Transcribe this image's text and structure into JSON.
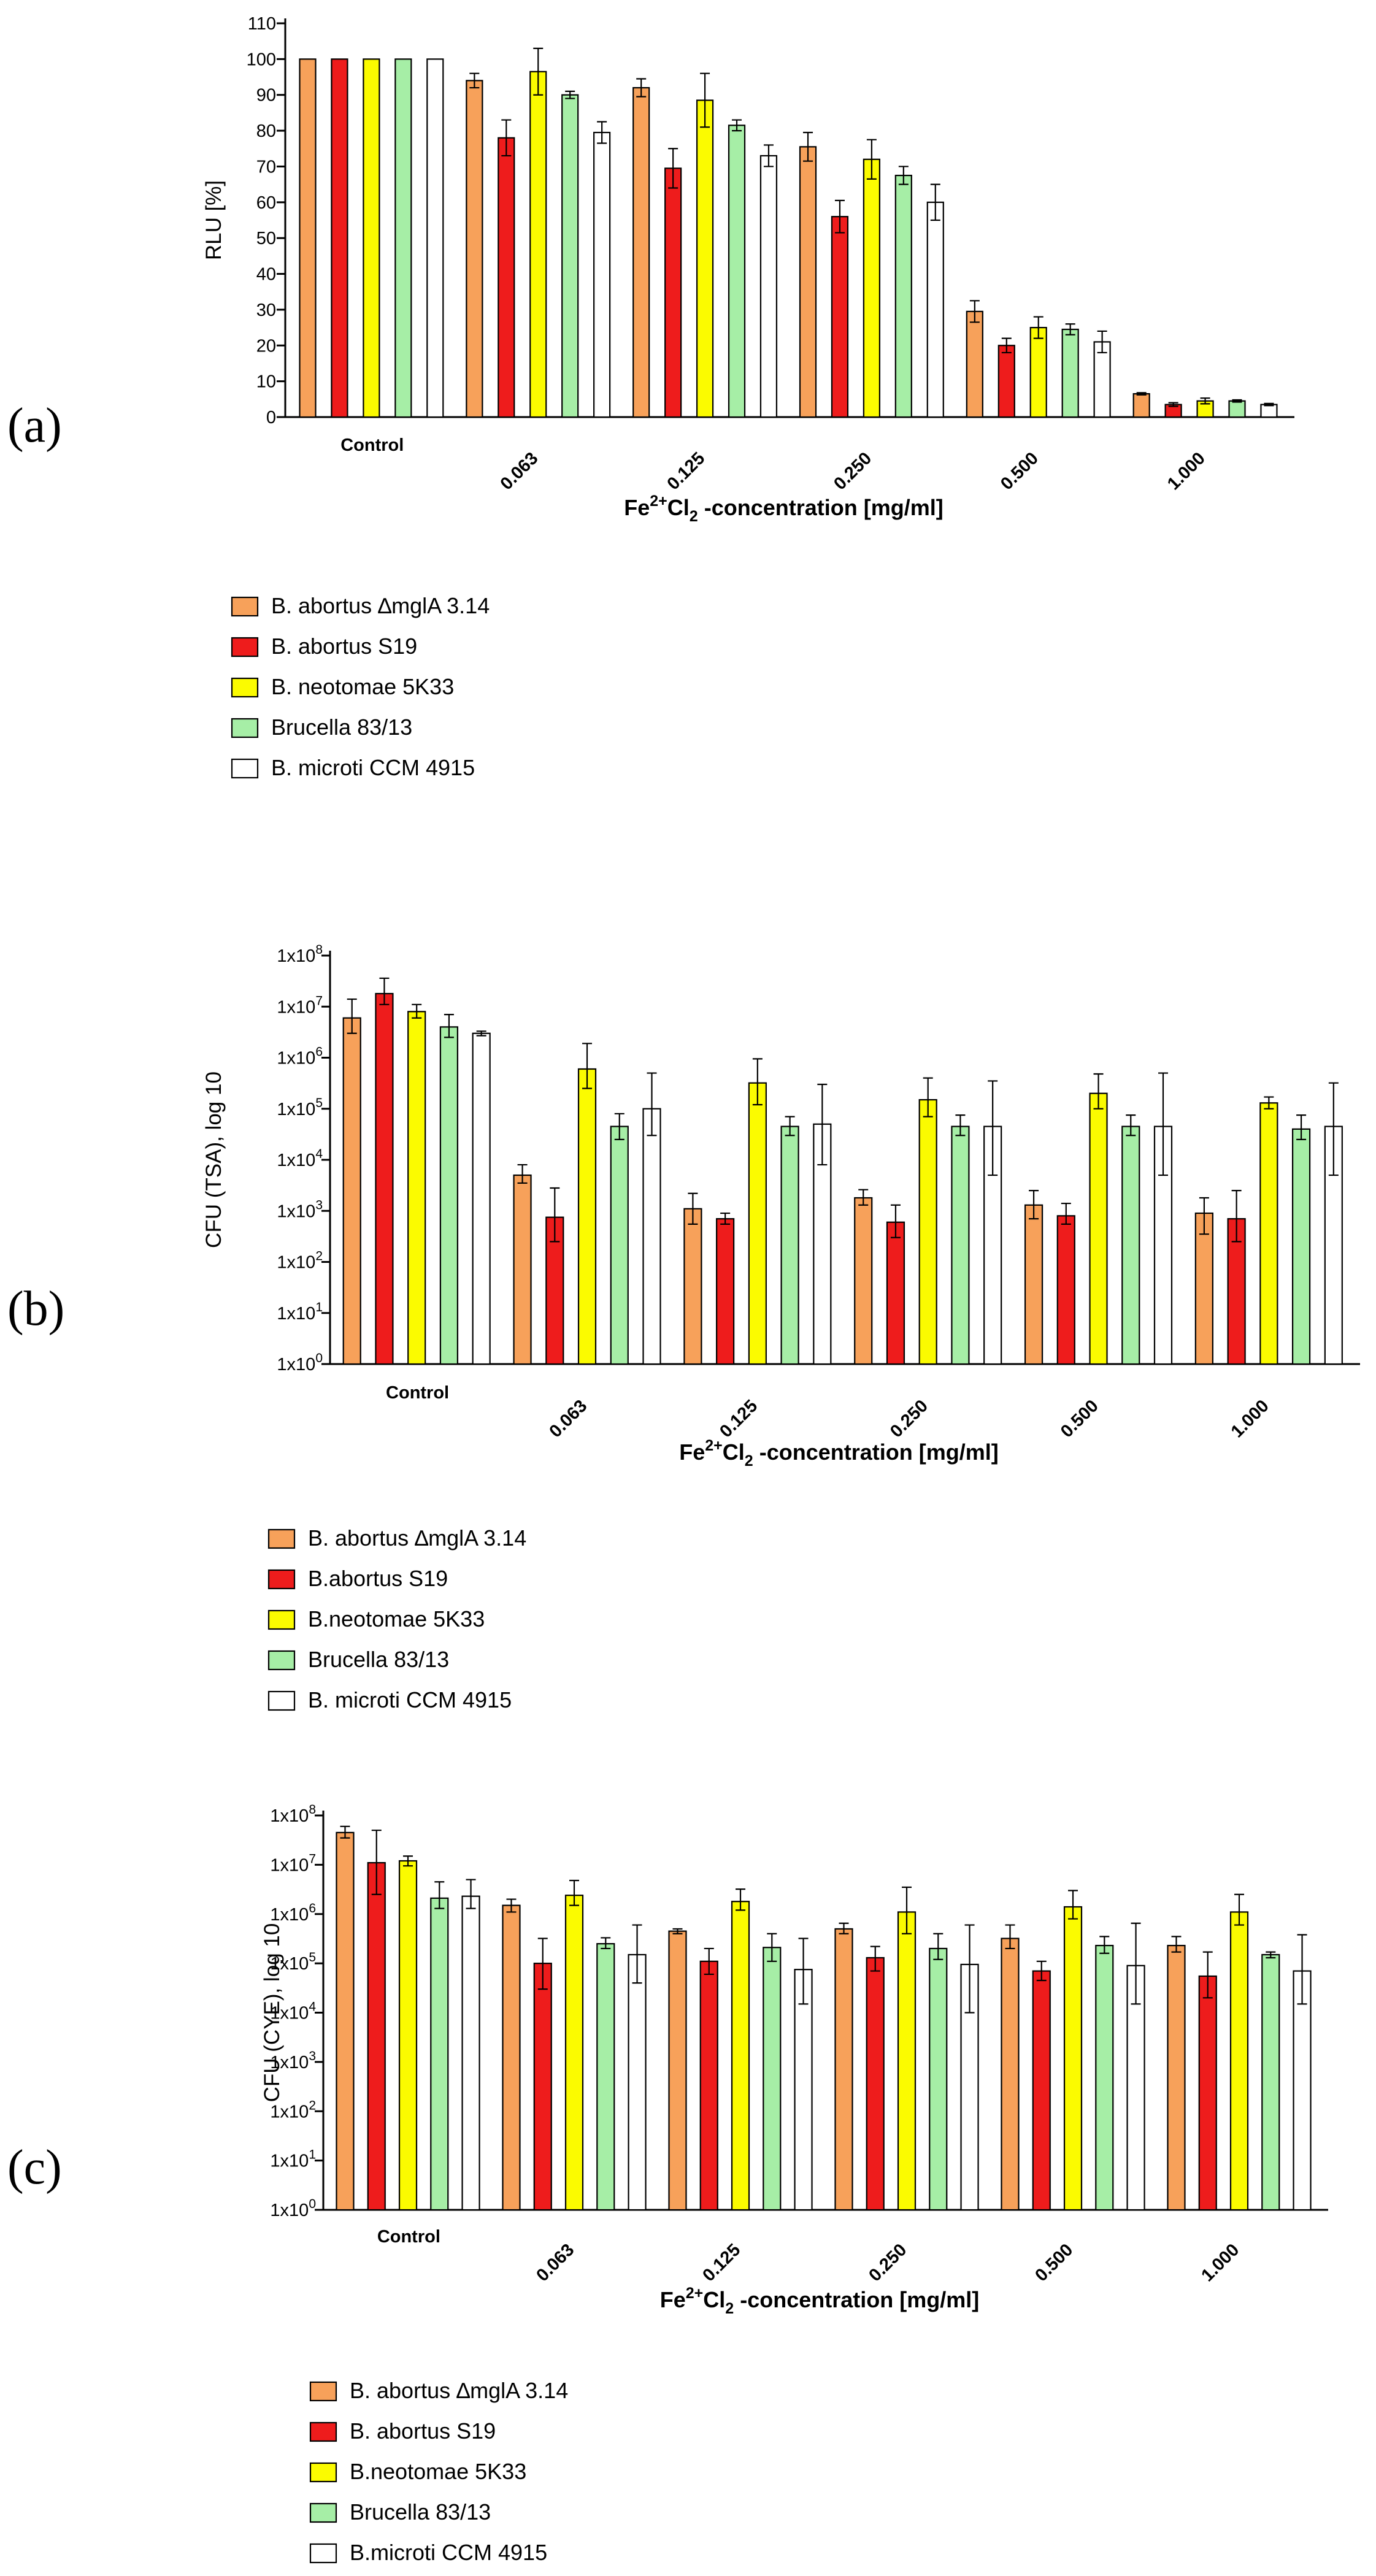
{
  "chart_data": [
    {
      "id": "a",
      "panel_label": "(a)",
      "type": "bar",
      "scale": "linear",
      "ylabel": "RLU [%]",
      "xlabel_parts": [
        "Fe",
        "2+",
        "Cl",
        "2",
        " -concentration [mg/ml]"
      ],
      "categories": [
        "Control",
        "0.063",
        "0.125",
        "0.250",
        "0.500",
        "1.000"
      ],
      "ylim": [
        0,
        110
      ],
      "yticks": [
        0,
        10,
        20,
        30,
        40,
        50,
        60,
        70,
        80,
        90,
        100,
        110
      ],
      "ytick_labels": [
        "0",
        "10",
        "20",
        "30",
        "40",
        "50",
        "60",
        "70",
        "80",
        "90",
        "100",
        "110"
      ],
      "grid": false,
      "legend_position": "below",
      "series": [
        {
          "name": "B. abortus ∆mglA 3.14",
          "color": "#f7a15a",
          "values": [
            100,
            94,
            92,
            75.5,
            29.5,
            6.5
          ],
          "errors": [
            0,
            2,
            2.5,
            4,
            3,
            0.3
          ]
        },
        {
          "name": "B. abortus S19",
          "color": "#ee1c1c",
          "values": [
            100,
            78,
            69.5,
            56,
            20,
            3.5
          ],
          "errors": [
            0,
            5,
            5.5,
            4.5,
            2,
            0.5
          ]
        },
        {
          "name": "B. neotomae 5K33",
          "color": "#fbfb00",
          "values": [
            100,
            96.5,
            88.5,
            72,
            25,
            4.5
          ],
          "errors": [
            0,
            6.5,
            7.5,
            5.5,
            3,
            0.8
          ]
        },
        {
          "name": "Brucella 83/13",
          "color": "#a6eea6",
          "values": [
            100,
            90,
            81.5,
            67.5,
            24.5,
            4.5
          ],
          "errors": [
            0,
            1,
            1.5,
            2.5,
            1.5,
            0.3
          ]
        },
        {
          "name": "B. microti CCM 4915",
          "color": "#ffffff",
          "values": [
            100,
            79.5,
            73,
            60,
            21,
            3.5
          ],
          "errors": [
            0,
            3,
            3,
            5,
            3,
            0.3
          ]
        }
      ]
    },
    {
      "id": "b",
      "panel_label": "(b)",
      "type": "bar",
      "scale": "log10",
      "ylabel": "CFU (TSA), log 10",
      "xlabel_parts": [
        "Fe",
        "2+",
        "Cl",
        "2",
        " -concentration [mg/ml]"
      ],
      "categories": [
        "Control",
        "0.063",
        "0.125",
        "0.250",
        "0.500",
        "1.000"
      ],
      "ylim": [
        1,
        100000000
      ],
      "yticks": [
        1,
        10,
        100,
        1000,
        10000,
        100000,
        1000000,
        10000000,
        100000000
      ],
      "ytick_labels": [
        [
          "1x10",
          "0"
        ],
        [
          "1x10",
          "1"
        ],
        [
          "1x10",
          "2"
        ],
        [
          "1x10",
          "3"
        ],
        [
          "1x10",
          "4"
        ],
        [
          "1x10",
          "5"
        ],
        [
          "1x10",
          "6"
        ],
        [
          "1x10",
          "7"
        ],
        [
          "1x10",
          "8"
        ]
      ],
      "grid": false,
      "legend_position": "below",
      "series": [
        {
          "name": "B. abortus ∆mglA 3.14",
          "color": "#f7a15a",
          "values": [
            6000000,
            5000,
            1100,
            1800,
            1300,
            900
          ],
          "err_low": [
            3000000,
            3500,
            550,
            1300,
            700,
            350
          ],
          "err_high": [
            14000000,
            8000,
            2200,
            2600,
            2500,
            1800
          ]
        },
        {
          "name": "B.abortus S19",
          "color": "#ee1c1c",
          "values": [
            18000000,
            750,
            700,
            600,
            800,
            700
          ],
          "err_low": [
            11000000,
            250,
            550,
            300,
            550,
            250
          ],
          "err_high": [
            36000000,
            2800,
            900,
            1300,
            1400,
            2500
          ]
        },
        {
          "name": "B.neotomae 5K33",
          "color": "#fbfb00",
          "values": [
            8000000,
            600000,
            320000,
            150000,
            200000,
            130000
          ],
          "err_low": [
            6000000,
            250000,
            120000,
            70000,
            100000,
            100000
          ],
          "err_high": [
            11000000,
            1900000,
            950000,
            400000,
            480000,
            170000
          ]
        },
        {
          "name": "Brucella 83/13",
          "color": "#a6eea6",
          "values": [
            4000000,
            45000,
            45000,
            45000,
            45000,
            40000
          ],
          "err_low": [
            2500000,
            25000,
            30000,
            30000,
            30000,
            25000
          ],
          "err_high": [
            7000000,
            80000,
            70000,
            75000,
            75000,
            75000
          ]
        },
        {
          "name": "B. microti CCM 4915",
          "color": "#ffffff",
          "values": [
            3000000,
            100000,
            50000,
            45000,
            45000,
            45000
          ],
          "err_low": [
            2700000,
            30000,
            8000,
            5000,
            5000,
            5000
          ],
          "err_high": [
            3300000,
            500000,
            300000,
            350000,
            500000,
            320000
          ]
        }
      ]
    },
    {
      "id": "c",
      "panel_label": "(c)",
      "type": "bar",
      "scale": "log10",
      "ylabel": "CFU (CYE), log 10",
      "xlabel_parts": [
        "Fe",
        "2+",
        "Cl",
        "2",
        " -concentration [mg/ml]"
      ],
      "categories": [
        "Control",
        "0.063",
        "0.125",
        "0.250",
        "0.500",
        "1.000"
      ],
      "ylim": [
        1,
        100000000
      ],
      "yticks": [
        1,
        10,
        100,
        1000,
        10000,
        100000,
        1000000,
        10000000,
        100000000
      ],
      "ytick_labels": [
        [
          "1x10",
          "0"
        ],
        [
          "1x10",
          "1"
        ],
        [
          "1x10",
          "2"
        ],
        [
          "1x10",
          "3"
        ],
        [
          "1x10",
          "4"
        ],
        [
          "1x10",
          "5"
        ],
        [
          "1x10",
          "6"
        ],
        [
          "1x10",
          "7"
        ],
        [
          "1x10",
          "8"
        ]
      ],
      "grid": false,
      "legend_position": "below",
      "series": [
        {
          "name": "B. abortus ∆mglA 3.14",
          "color": "#f7a15a",
          "values": [
            45000000,
            1500000,
            450000,
            500000,
            320000,
            230000
          ],
          "err_low": [
            35000000,
            1100000,
            400000,
            400000,
            200000,
            170000
          ],
          "err_high": [
            60000000,
            2000000,
            500000,
            650000,
            600000,
            350000
          ]
        },
        {
          "name": "B. abortus S19",
          "color": "#ee1c1c",
          "values": [
            11000000,
            100000,
            110000,
            130000,
            70000,
            55000
          ],
          "err_low": [
            2500000,
            30000,
            60000,
            70000,
            45000,
            20000
          ],
          "err_high": [
            50000000,
            320000,
            200000,
            220000,
            110000,
            170000
          ]
        },
        {
          "name": "B.neotomae 5K33",
          "color": "#fbfb00",
          "values": [
            12000000,
            2400000,
            1800000,
            1100000,
            1400000,
            1100000
          ],
          "err_low": [
            9500000,
            1500000,
            1200000,
            400000,
            800000,
            600000
          ],
          "err_high": [
            15000000,
            4800000,
            3200000,
            3500000,
            3000000,
            2500000
          ]
        },
        {
          "name": "Brucella 83/13",
          "color": "#a6eea6",
          "values": [
            2100000,
            250000,
            210000,
            200000,
            230000,
            150000
          ],
          "err_low": [
            1300000,
            200000,
            110000,
            120000,
            160000,
            130000
          ],
          "err_high": [
            4500000,
            330000,
            400000,
            400000,
            350000,
            170000
          ]
        },
        {
          "name": "B.microti CCM 4915",
          "color": "#ffffff",
          "values": [
            2300000,
            150000,
            75000,
            95000,
            90000,
            70000
          ],
          "err_low": [
            1300000,
            40000,
            15000,
            10000,
            15000,
            15000
          ],
          "err_high": [
            5000000,
            600000,
            320000,
            600000,
            650000,
            380000
          ]
        }
      ]
    }
  ]
}
